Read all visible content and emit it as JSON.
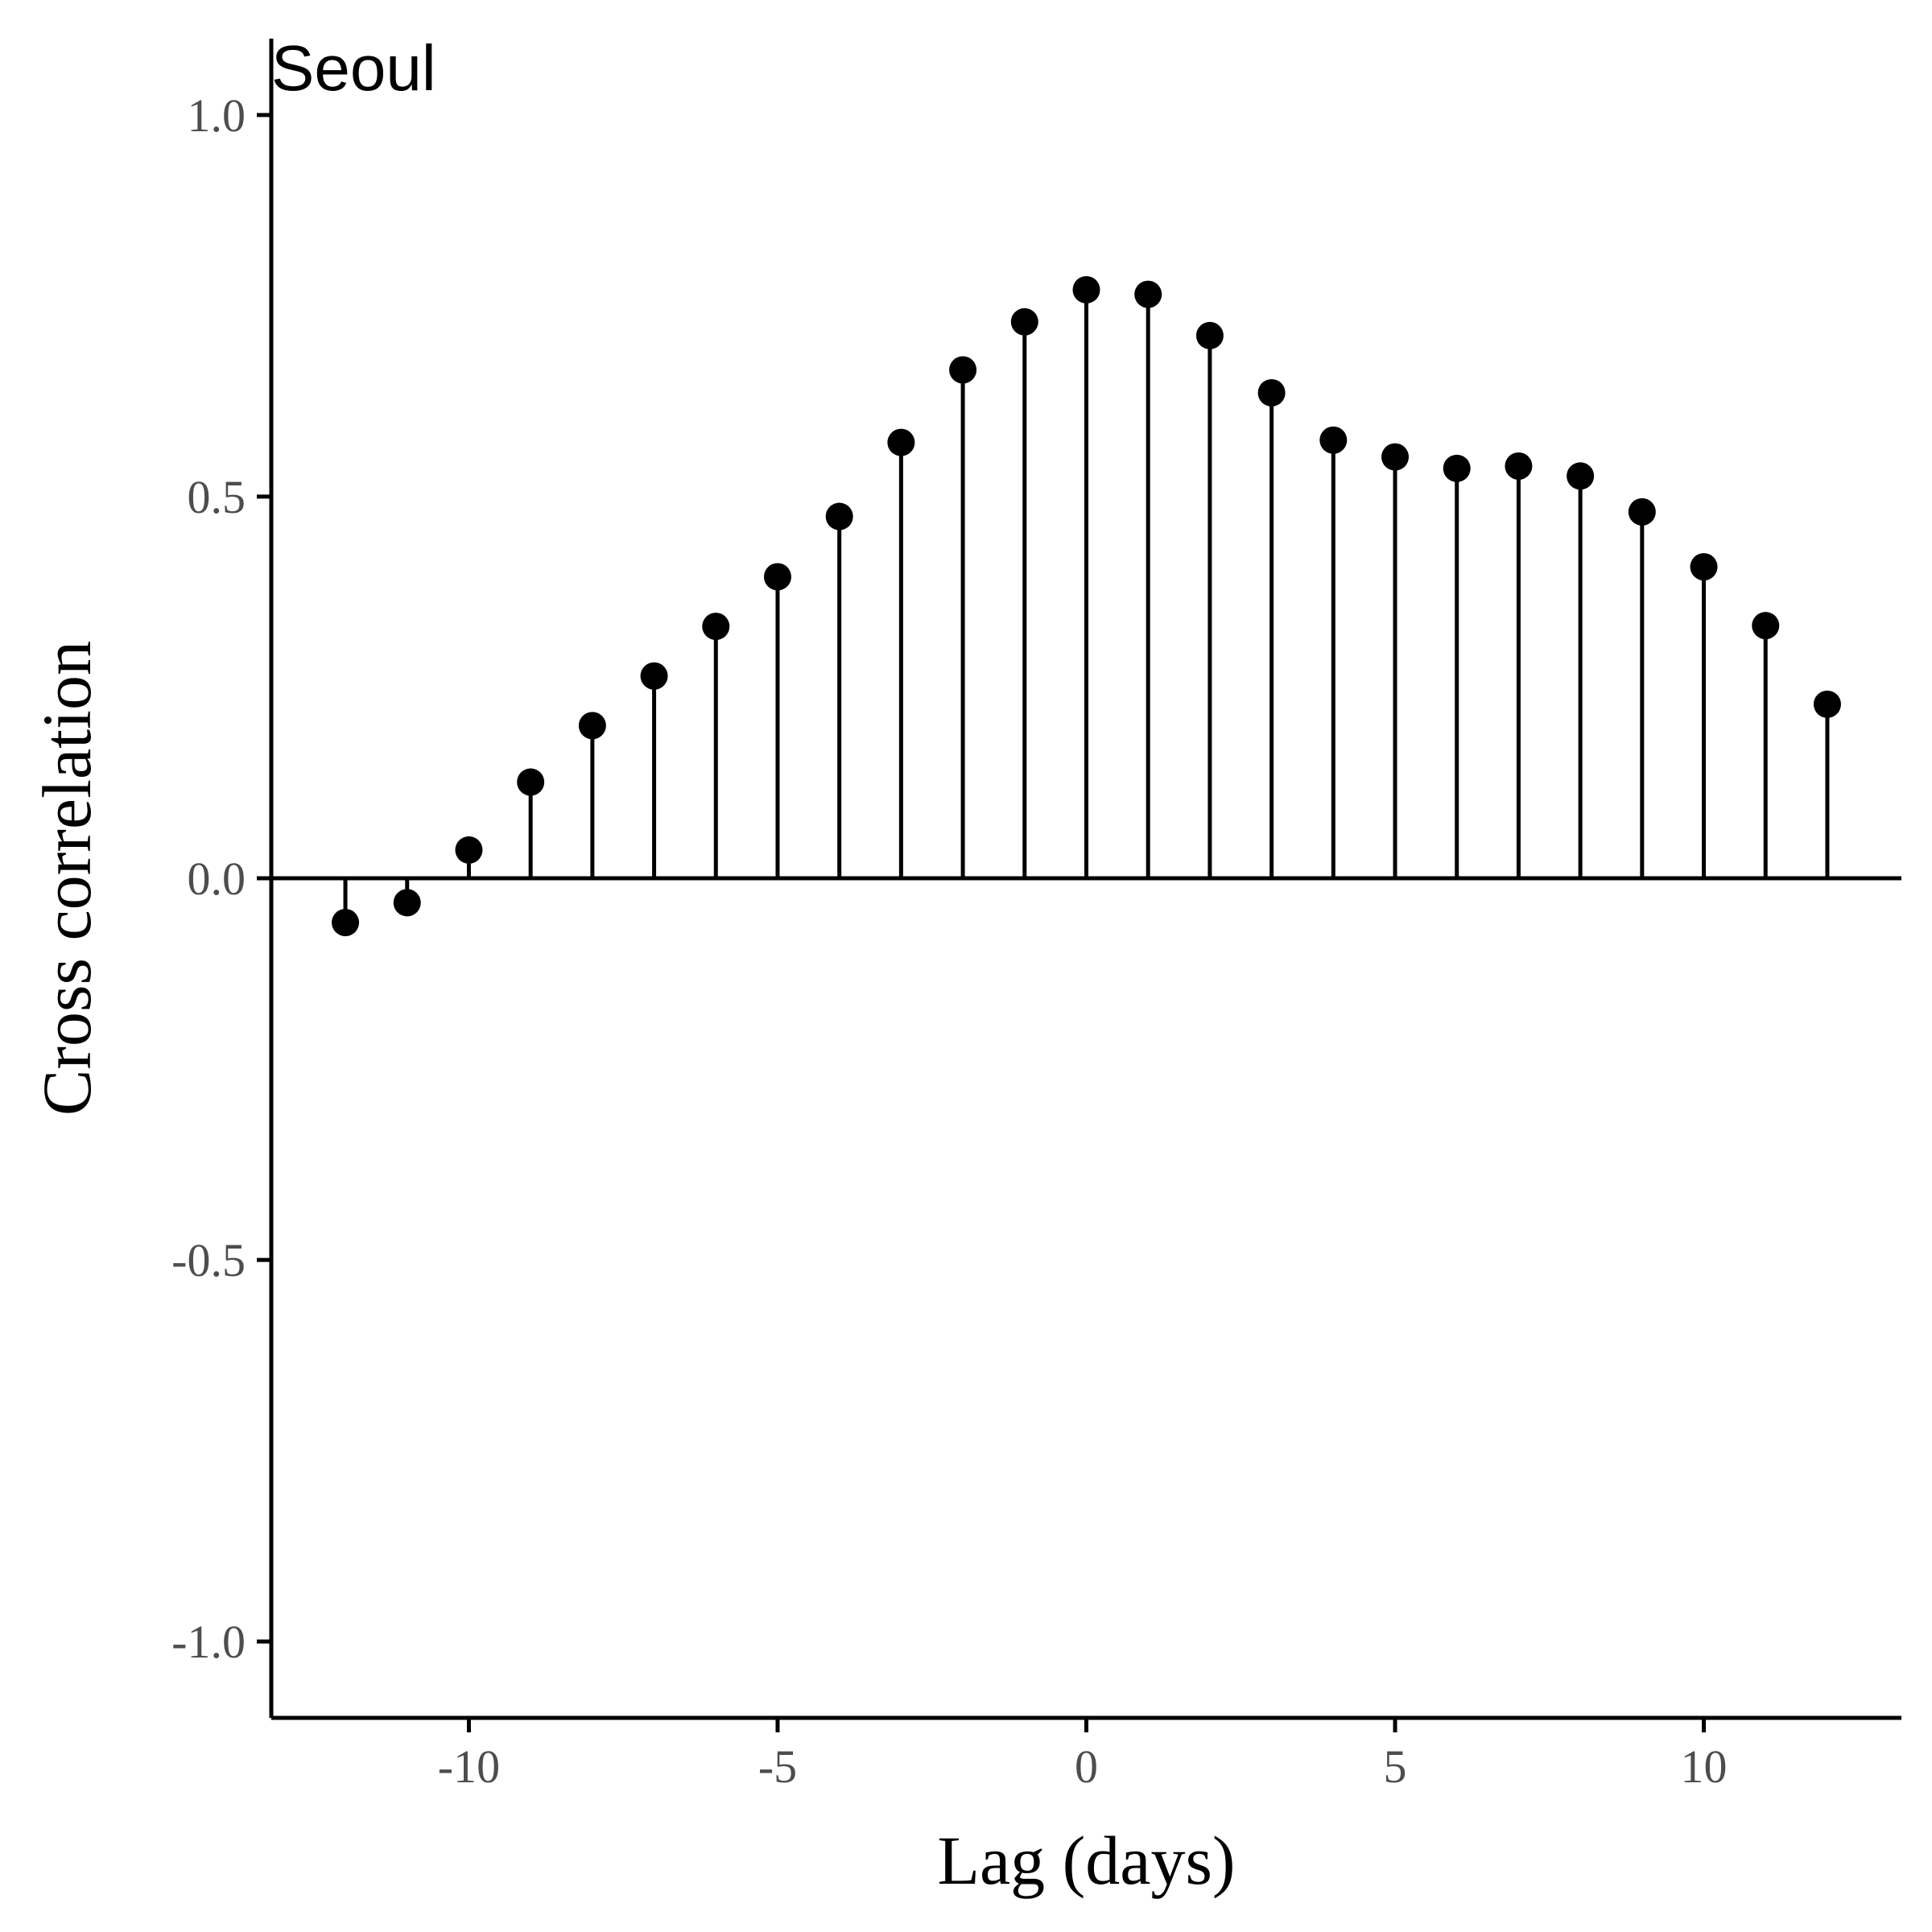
{
  "chart_data": {
    "type": "scatter",
    "style": "stem (lollipop) plot",
    "tag": "Seoul",
    "xlabel": "Lag (days)",
    "ylabel": "Cross correlation",
    "x": [
      -12,
      -11,
      -10,
      -9,
      -8,
      -7,
      -6,
      -5,
      -4,
      -3,
      -2,
      -1,
      0,
      1,
      2,
      3,
      4,
      5,
      6,
      7,
      8,
      9,
      10,
      11,
      12
    ],
    "y": [
      -0.058,
      -0.032,
      0.037,
      0.126,
      0.2,
      0.265,
      0.33,
      0.395,
      0.474,
      0.571,
      0.666,
      0.729,
      0.771,
      0.765,
      0.711,
      0.636,
      0.574,
      0.552,
      0.537,
      0.54,
      0.527,
      0.48,
      0.408,
      0.331,
      0.228
    ],
    "xlim": [
      -13.2,
      13.2
    ],
    "ylim": [
      -1.1,
      1.1
    ],
    "xticks": [
      -10,
      -5,
      0,
      5,
      10
    ],
    "xtick_labels": [
      "-10",
      "-5",
      "0",
      "5",
      "10"
    ],
    "yticks": [
      -1.0,
      -0.5,
      0.0,
      0.5,
      1.0
    ],
    "ytick_labels": [
      "-1.0",
      "-0.5",
      "0.0",
      "0.5",
      "1.0"
    ],
    "baseline": 0,
    "grid": false,
    "legend": "none",
    "colors": {
      "marks": "#000000",
      "axis": "#000000",
      "tick_label": "#4d4d4d"
    }
  }
}
